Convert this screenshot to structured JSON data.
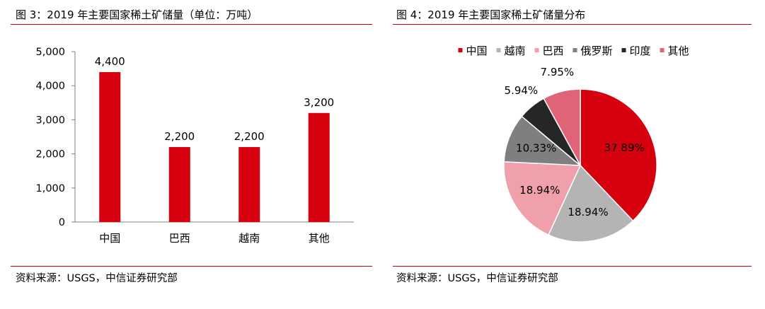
{
  "colors": {
    "accent": "#c00018",
    "bar": "#d7000f"
  },
  "left": {
    "title": "图 3：2019 年主要国家稀土矿储量（单位：万吨）",
    "source": "资料来源：USGS，中信证券研究部"
  },
  "right": {
    "title": "图 4：2019 年主要国家稀土矿储量分布",
    "source": "资料来源：USGS，中信证券研究部"
  },
  "chart_data": [
    {
      "type": "bar",
      "title": "图 3：2019 年主要国家稀土矿储量（单位：万吨）",
      "categories": [
        "中国",
        "巴西",
        "越南",
        "其他"
      ],
      "values": [
        4400,
        2200,
        2200,
        3200
      ],
      "value_labels": [
        "4,400",
        "2,200",
        "2,200",
        "3,200"
      ],
      "ylim": [
        0,
        5000
      ],
      "yticks": [
        0,
        1000,
        2000,
        3000,
        4000,
        5000
      ],
      "ytick_labels": [
        "0",
        "1,000",
        "2,000",
        "3,000",
        "4,000",
        "5,000"
      ],
      "grid": false,
      "legend": "none",
      "color": "#d7000f"
    },
    {
      "type": "pie",
      "title": "图 4：2019 年主要国家稀土矿储量分布",
      "legend": "top",
      "slices": [
        {
          "name": "中国",
          "value": 37.89,
          "label": "37.89%",
          "color": "#d7000f"
        },
        {
          "name": "越南",
          "value": 18.94,
          "label": "18.94%",
          "color": "#b4b4b4"
        },
        {
          "name": "巴西",
          "value": 18.94,
          "label": "18.94%",
          "color": "#f0a0aa"
        },
        {
          "name": "俄罗斯",
          "value": 10.33,
          "label": "10.33%",
          "color": "#7f7f7f"
        },
        {
          "name": "印度",
          "value": 5.94,
          "label": "5.94%",
          "color": "#262626"
        },
        {
          "name": "其他",
          "value": 7.95,
          "label": "7.95%",
          "color": "#e06478"
        }
      ]
    }
  ]
}
